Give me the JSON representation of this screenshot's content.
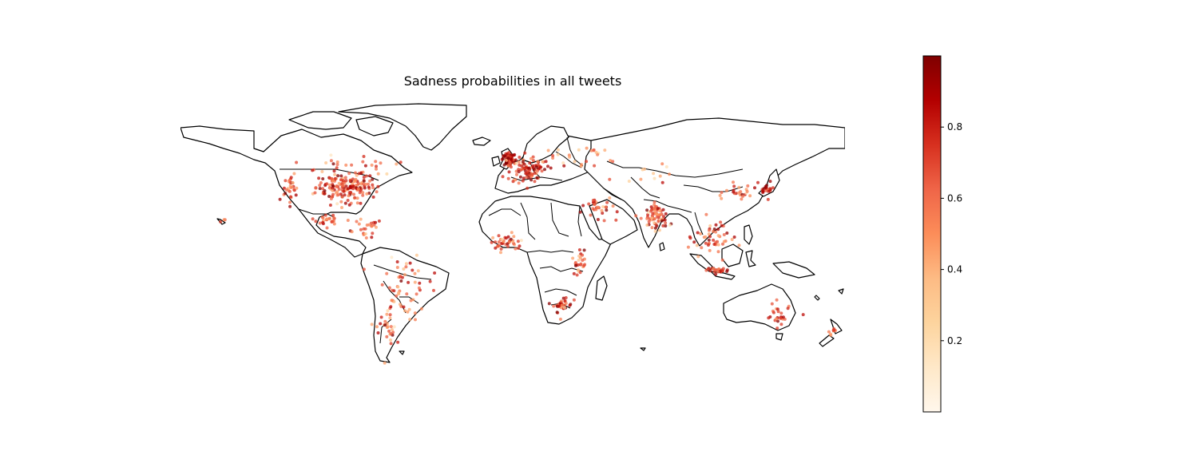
{
  "figure": {
    "title": "Sadness probabilities in all tweets"
  },
  "colorbar": {
    "colormap": "OrRd",
    "range": [
      0.0,
      1.0
    ],
    "ticks": [
      {
        "value": 0.2,
        "label": "0.2"
      },
      {
        "value": 0.4,
        "label": "0.4"
      },
      {
        "value": 0.6,
        "label": "0.6"
      },
      {
        "value": 0.8,
        "label": "0.8"
      }
    ],
    "stops": [
      "#fff7ec",
      "#fee8c8",
      "#fdd49e",
      "#fdbb84",
      "#fc8d59",
      "#ef6548",
      "#d7301f",
      "#b30000",
      "#7f0000"
    ]
  },
  "map": {
    "projection": "plate-carree",
    "lon_range": [
      -180,
      180
    ],
    "lat_range": [
      -60,
      85
    ],
    "land_fill": "#ffffff",
    "border_color": "#000000"
  },
  "chart_data": {
    "type": "scatter",
    "title": "Sadness probabilities in all tweets",
    "x_label": "",
    "y_label": "",
    "xlim": [
      -180,
      180
    ],
    "ylim": [
      -60,
      85
    ],
    "point_color_scale": "OrRd",
    "clusters": [
      {
        "region": "United States",
        "lon": -90,
        "lat": 38,
        "spread_lon": 14,
        "spread_lat": 7,
        "count": 170,
        "prob": 0.7
      },
      {
        "region": "US West Coast",
        "lon": -120,
        "lat": 37,
        "spread_lon": 3,
        "spread_lat": 6,
        "count": 30,
        "prob": 0.65
      },
      {
        "region": "Canada",
        "lon": -90,
        "lat": 50,
        "spread_lon": 25,
        "spread_lat": 4,
        "count": 25,
        "prob": 0.6
      },
      {
        "region": "Mexico",
        "lon": -101,
        "lat": 21,
        "spread_lon": 6,
        "spread_lat": 4,
        "count": 25,
        "prob": 0.65
      },
      {
        "region": "Central America & Caribbean",
        "lon": -80,
        "lat": 15,
        "spread_lon": 8,
        "spread_lat": 5,
        "count": 25,
        "prob": 0.6
      },
      {
        "region": "South America",
        "lon": -60,
        "lat": -15,
        "spread_lon": 12,
        "spread_lat": 14,
        "count": 60,
        "prob": 0.6
      },
      {
        "region": "Chile & Argentina",
        "lon": -68,
        "lat": -38,
        "spread_lon": 4,
        "spread_lat": 8,
        "count": 25,
        "prob": 0.6
      },
      {
        "region": "United Kingdom & Ireland",
        "lon": -2,
        "lat": 53,
        "spread_lon": 3,
        "spread_lat": 3,
        "count": 80,
        "prob": 0.85
      },
      {
        "region": "Western Europe",
        "lon": 8,
        "lat": 48,
        "spread_lon": 9,
        "spread_lat": 6,
        "count": 90,
        "prob": 0.7
      },
      {
        "region": "Eastern Europe & Russia",
        "lon": 38,
        "lat": 54,
        "spread_lon": 14,
        "spread_lat": 5,
        "count": 25,
        "prob": 0.5
      },
      {
        "region": "Middle East",
        "lon": 45,
        "lat": 28,
        "spread_lon": 9,
        "spread_lat": 6,
        "count": 30,
        "prob": 0.65
      },
      {
        "region": "West Africa",
        "lon": -4,
        "lat": 8,
        "spread_lon": 7,
        "spread_lat": 4,
        "count": 40,
        "prob": 0.65
      },
      {
        "region": "East Africa",
        "lon": 36,
        "lat": -2,
        "spread_lon": 3,
        "spread_lat": 6,
        "count": 25,
        "prob": 0.65
      },
      {
        "region": "Southern Africa",
        "lon": 27,
        "lat": -26,
        "spread_lon": 4,
        "spread_lat": 4,
        "count": 35,
        "prob": 0.7
      },
      {
        "region": "India",
        "lon": 78,
        "lat": 22,
        "spread_lon": 5,
        "spread_lat": 6,
        "count": 70,
        "prob": 0.7
      },
      {
        "region": "Southeast Asia",
        "lon": 108,
        "lat": 10,
        "spread_lon": 9,
        "spread_lat": 8,
        "count": 50,
        "prob": 0.65
      },
      {
        "region": "Indonesia",
        "lon": 110,
        "lat": -7,
        "spread_lon": 6,
        "spread_lat": 1.5,
        "count": 25,
        "prob": 0.75
      },
      {
        "region": "East Asia",
        "lon": 125,
        "lat": 35,
        "spread_lon": 8,
        "spread_lat": 4,
        "count": 25,
        "prob": 0.6
      },
      {
        "region": "Japan",
        "lon": 138,
        "lat": 36,
        "spread_lon": 3,
        "spread_lat": 3,
        "count": 20,
        "prob": 0.75
      },
      {
        "region": "Australia",
        "lon": 145,
        "lat": -32,
        "spread_lon": 8,
        "spread_lat": 5,
        "count": 25,
        "prob": 0.7
      },
      {
        "region": "New Zealand",
        "lon": 174,
        "lat": -40,
        "spread_lon": 2,
        "spread_lat": 3,
        "count": 8,
        "prob": 0.65
      },
      {
        "region": "Central Asia",
        "lon": 70,
        "lat": 45,
        "spread_lon": 12,
        "spread_lat": 5,
        "count": 12,
        "prob": 0.4
      },
      {
        "region": "Hawaii",
        "lon": -157,
        "lat": 20,
        "spread_lon": 1,
        "spread_lat": 1,
        "count": 3,
        "prob": 0.6
      }
    ]
  }
}
